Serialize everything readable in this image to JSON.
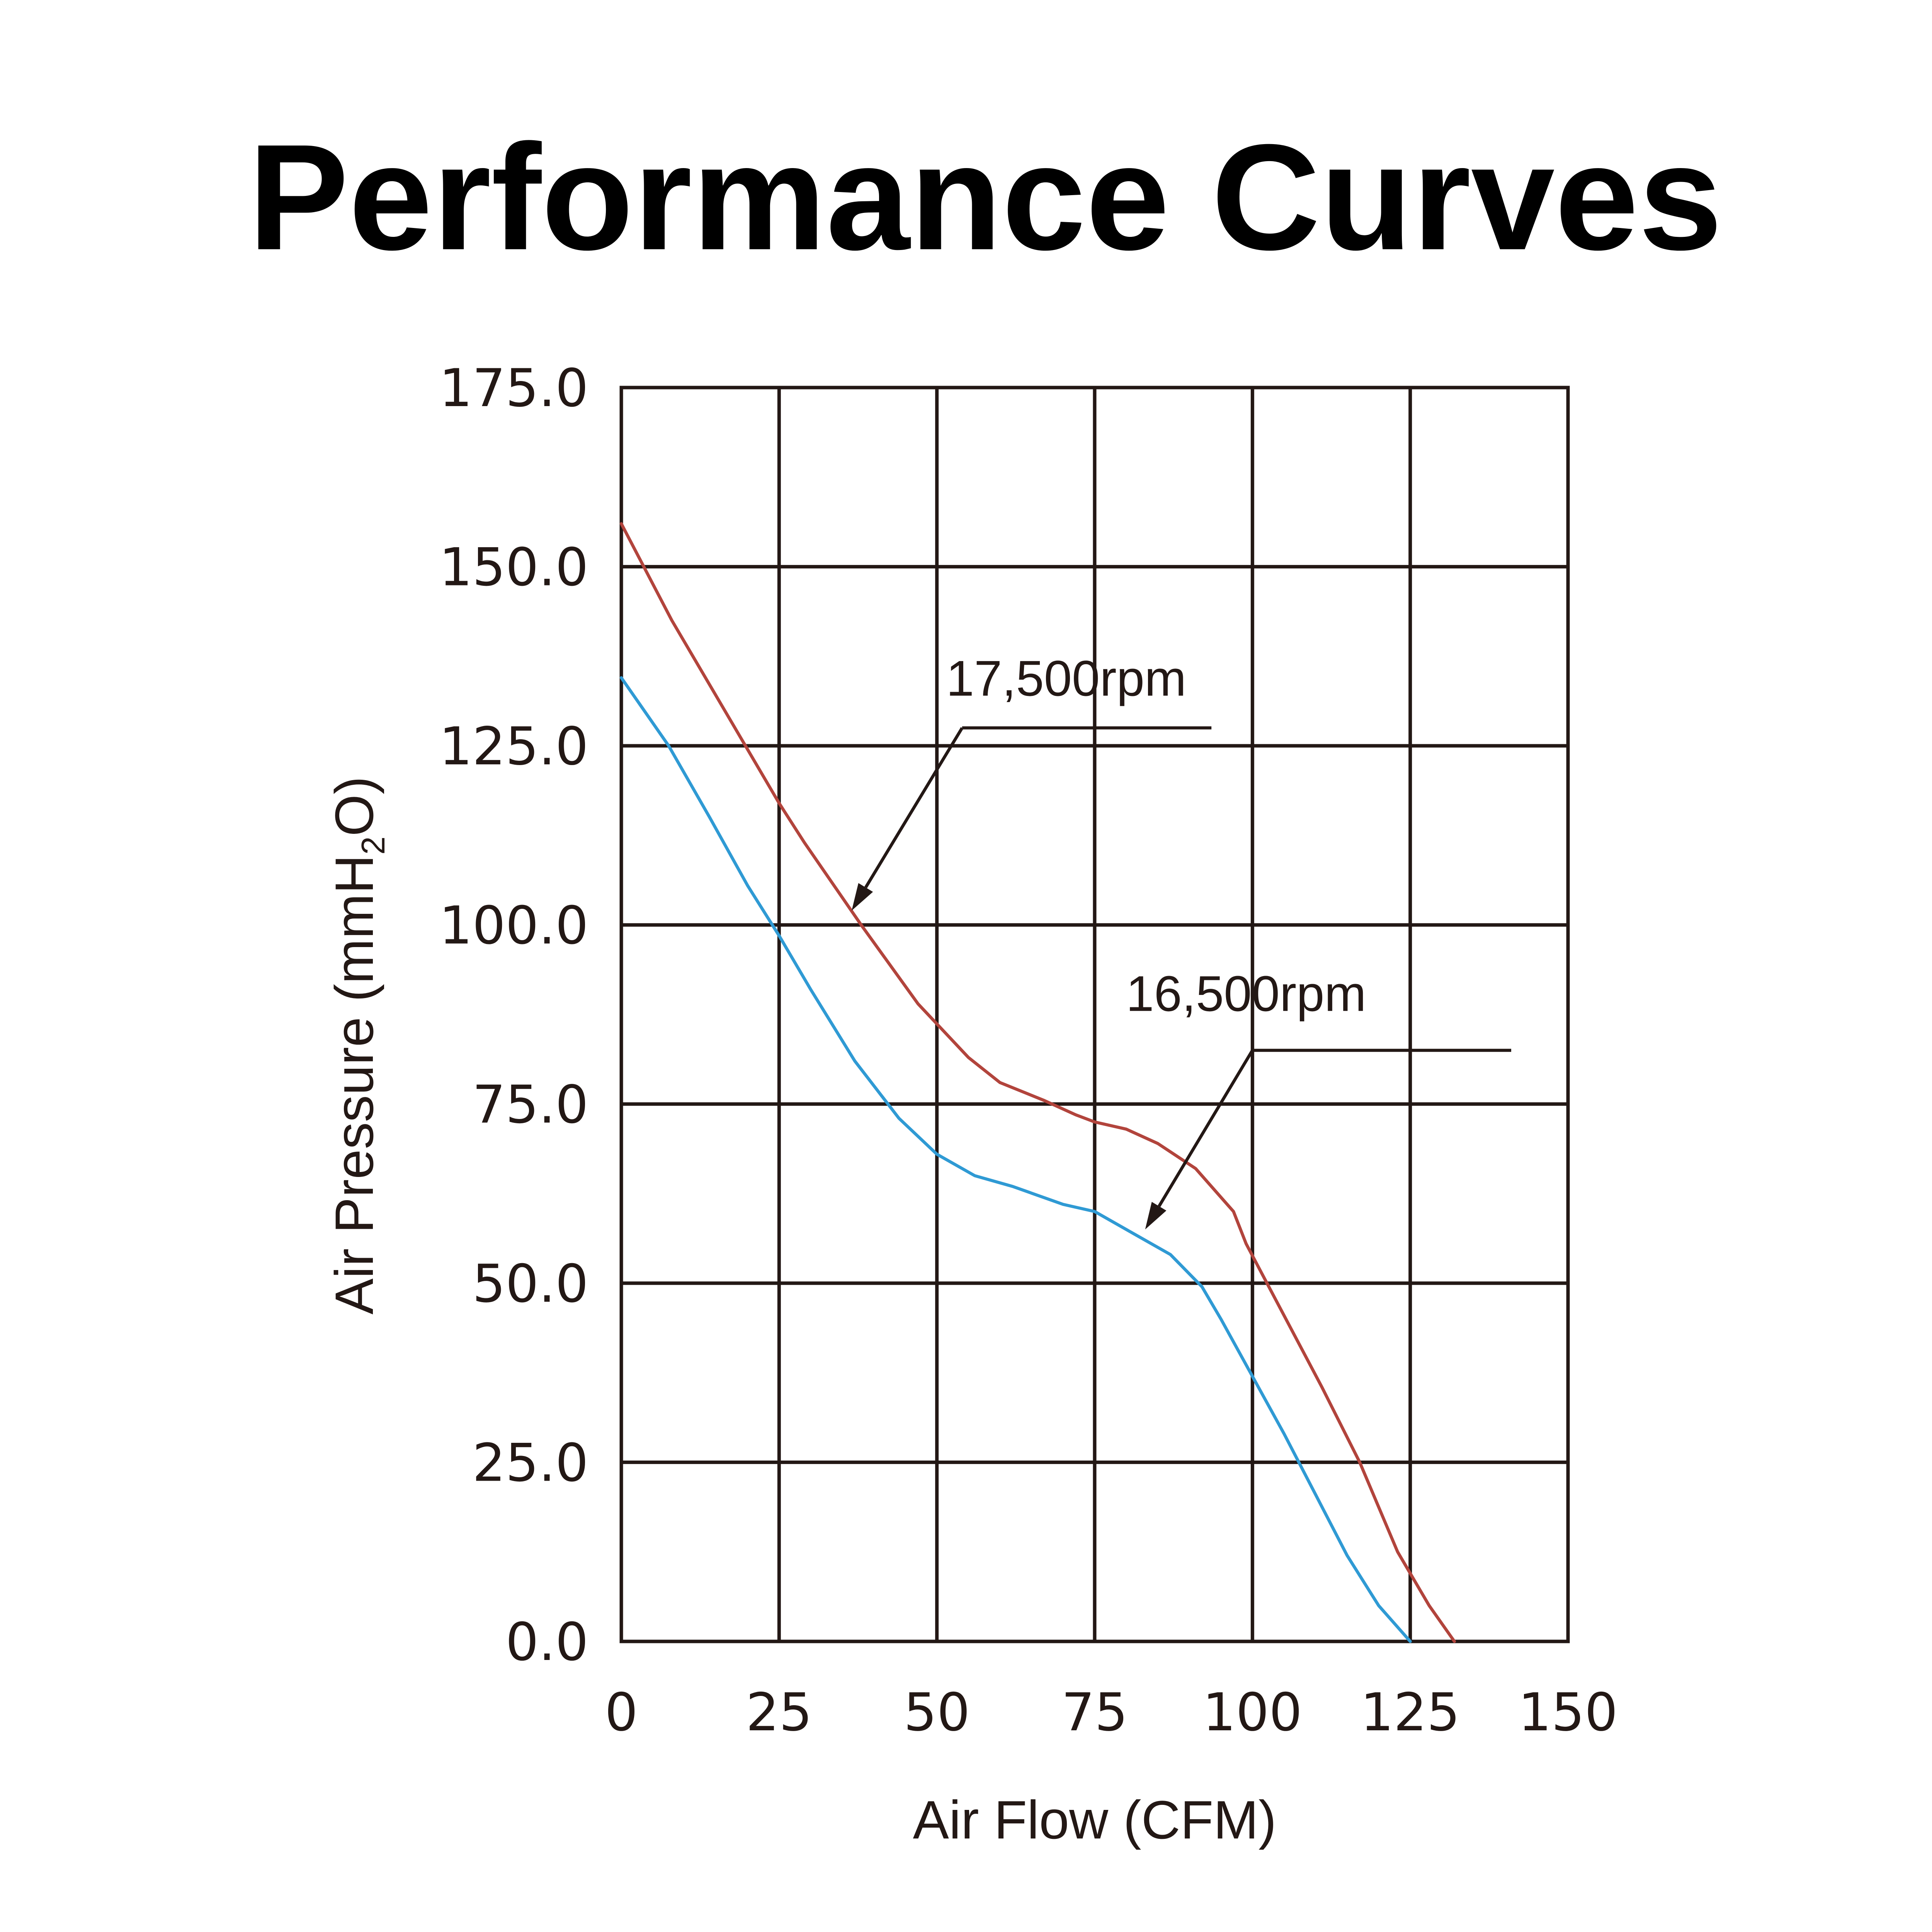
{
  "chart_data": {
    "type": "line",
    "title": "Performance Curves",
    "xlabel": "Air Flow (CFM)",
    "ylabel": {
      "prefix": "Air Pressure (mmH",
      "subscript": "2",
      "suffix": "O)"
    },
    "xlim": [
      0,
      150
    ],
    "ylim": [
      0,
      175
    ],
    "x_ticks": [
      0,
      25,
      50,
      75,
      100,
      125,
      150
    ],
    "x_tick_labels": [
      "0",
      "25",
      "50",
      "75",
      "100",
      "125",
      "150"
    ],
    "y_ticks": [
      0,
      25,
      50,
      75,
      100,
      125,
      150,
      175
    ],
    "y_tick_labels": [
      "0.0",
      "25.0",
      "50.0",
      "75.0",
      "100.0",
      "125.0",
      "150.0",
      "175.0"
    ],
    "grid": true,
    "series": [
      {
        "name": "17,500rpm",
        "color": "#b2443c",
        "x": [
          0,
          8,
          17,
          25,
          29,
          38,
          47,
          55,
          60,
          67,
          72,
          75,
          80,
          85,
          91,
          97,
          99,
          105,
          111,
          117,
          123,
          128,
          132
        ],
        "y": [
          156,
          142.5,
          129,
          117,
          111.5,
          100,
          89,
          81.5,
          78,
          75.5,
          73.5,
          72.5,
          71.5,
          69.5,
          66,
          60,
          55.5,
          45.5,
          35.5,
          25,
          12.5,
          5,
          0
        ]
      },
      {
        "name": "16,500rpm",
        "color": "#2f9ad4",
        "x": [
          0,
          7.5,
          14,
          20,
          25,
          30,
          37,
          44,
          50,
          56,
          62,
          70,
          75,
          81,
          87,
          92,
          95,
          100,
          105,
          110,
          115,
          120,
          125
        ],
        "y": [
          134.5,
          125,
          115,
          105.5,
          98.5,
          91,
          81,
          73,
          68,
          65,
          63.5,
          61,
          60,
          57,
          54,
          49.5,
          45,
          37,
          29,
          20.5,
          12,
          5,
          0
        ]
      }
    ],
    "annotations": [
      {
        "text": "17,500rpm",
        "text_at": [
          70.5,
          132
        ],
        "underline": [
          [
            54,
            127.5
          ],
          [
            93.5,
            127.5
          ]
        ],
        "arrow_from": [
          54,
          127.5
        ],
        "arrow_to": [
          36.5,
          102
        ]
      },
      {
        "text": "16,500rpm",
        "text_at": [
          99,
          88
        ],
        "underline": [
          [
            100,
            82.5
          ],
          [
            141,
            82.5
          ]
        ],
        "arrow_from": [
          100,
          82.5
        ],
        "arrow_to": [
          83,
          57.5
        ]
      }
    ]
  }
}
